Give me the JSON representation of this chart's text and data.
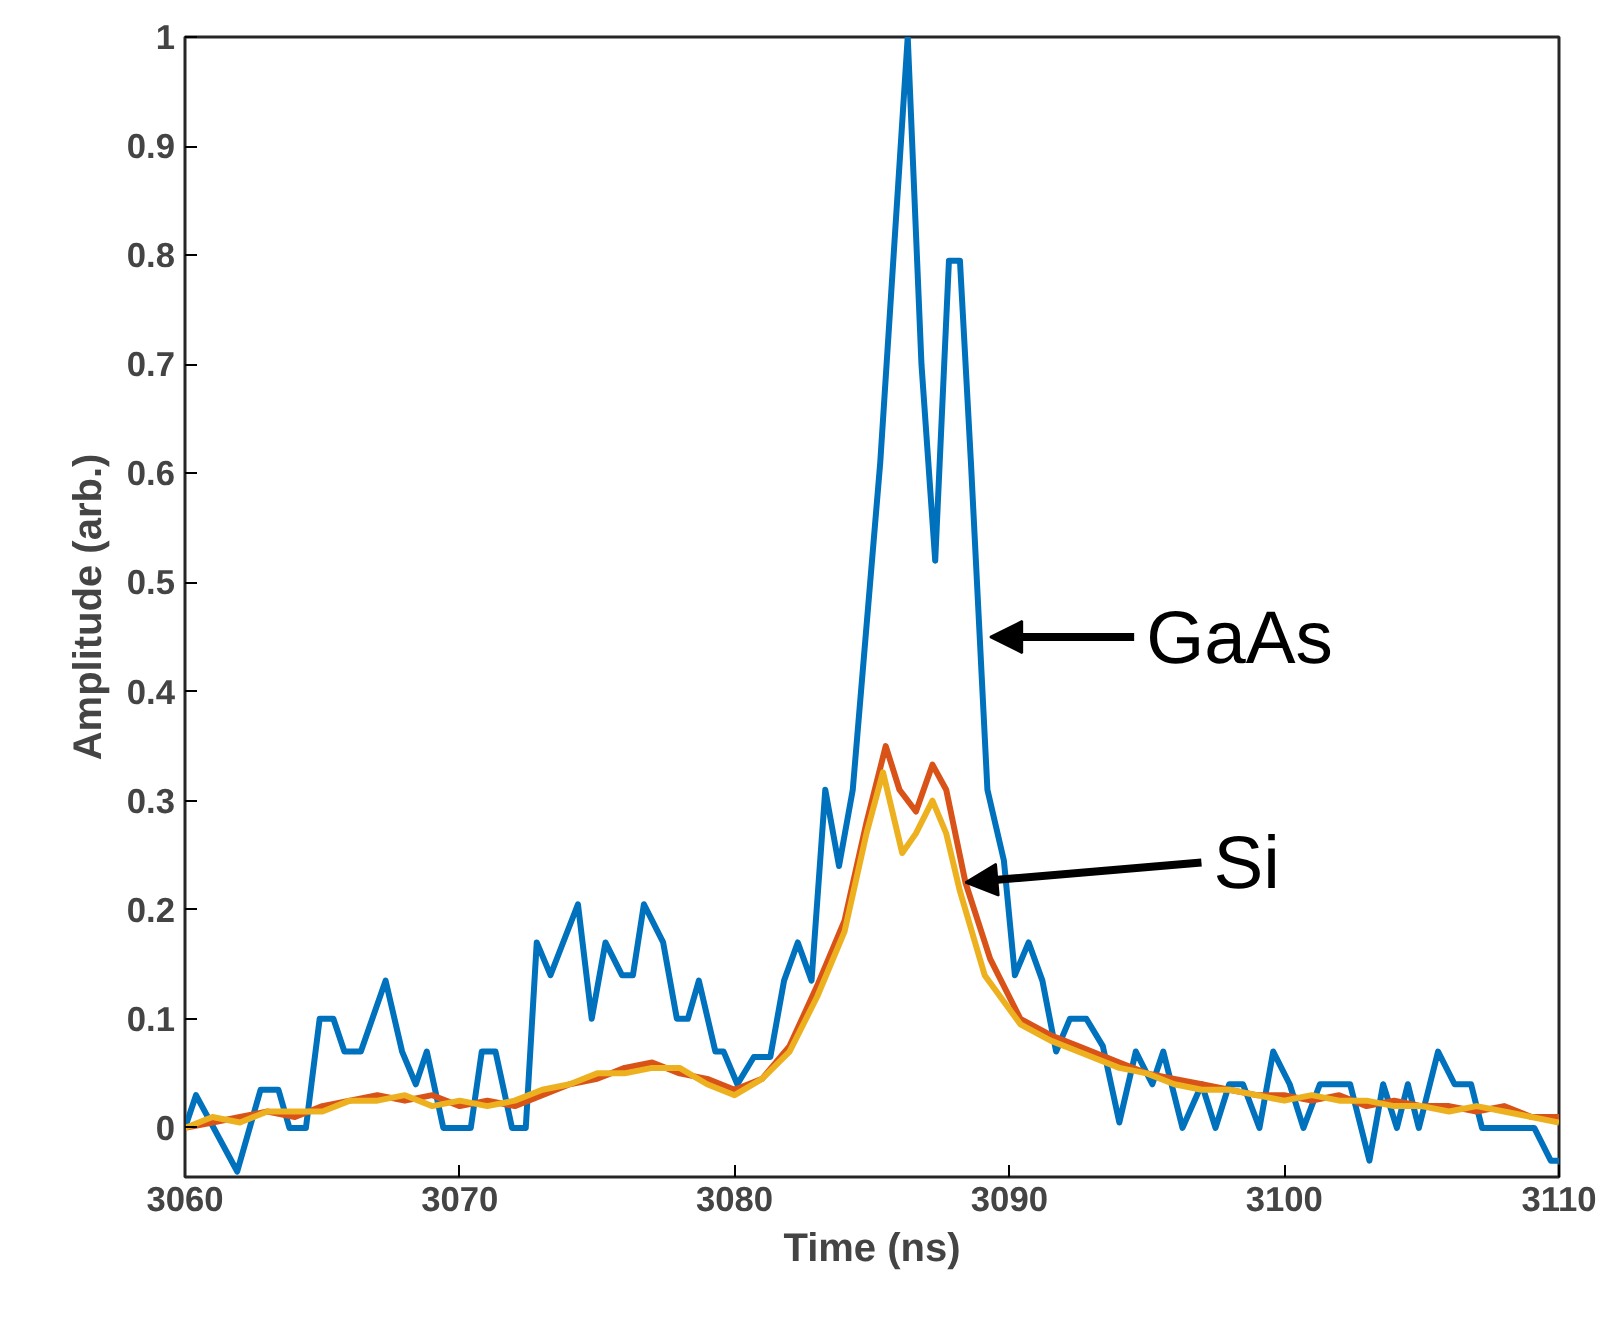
{
  "chart_data": {
    "type": "line",
    "xlabel": "Time (ns)",
    "ylabel": "Amplitude (arb.)",
    "xlim": [
      3060,
      3110
    ],
    "ylim": [
      -0.045,
      1
    ],
    "xticks": [
      3060,
      3070,
      3080,
      3090,
      3100,
      3110
    ],
    "yticks": [
      0,
      0.1,
      0.2,
      0.3,
      0.4,
      0.5,
      0.6,
      0.7,
      0.8,
      0.9,
      1
    ],
    "grid": false,
    "line_style": "solid",
    "annotations": [
      {
        "text": "GaAs",
        "x": 3089.3,
        "y": 0.45
      },
      {
        "text": "Si",
        "x": 3088.4,
        "y": 0.225
      }
    ],
    "series": [
      {
        "color": "#0072bd",
        "x": [
          3060,
          3060.4,
          3061.9,
          3062.75,
          3063.4,
          3063.8,
          3064.4,
          3064.9,
          3065.4,
          3065.8,
          3066.4,
          3067.3,
          3067.9,
          3068.4,
          3068.8,
          3069.4,
          3070.4,
          3070.8,
          3071.3,
          3071.9,
          3072.4,
          3072.8,
          3073.3,
          3074.3,
          3074.8,
          3075.3,
          3075.9,
          3076.3,
          3076.7,
          3077.4,
          3077.9,
          3078.3,
          3078.7,
          3079.3,
          3079.6,
          3080.1,
          3080.7,
          3081.3,
          3081.8,
          3082.3,
          3082.8,
          3083.3,
          3083.8,
          3084.3,
          3085.3,
          3086.3,
          3086.8,
          3087.3,
          3087.8,
          3088.2,
          3088.6,
          3089.2,
          3089.8,
          3090.2,
          3090.7,
          3091.2,
          3091.7,
          3092.2,
          3092.8,
          3093.4,
          3094,
          3094.6,
          3095.2,
          3095.6,
          3096.3,
          3097,
          3097.5,
          3098,
          3098.5,
          3099.1,
          3099.6,
          3100.2,
          3100.7,
          3101.3,
          3101.7,
          3102.4,
          3103.1,
          3103.6,
          3104.1,
          3104.5,
          3104.9,
          3105.6,
          3106.2,
          3106.8,
          3107.2,
          3109.1,
          3109.7,
          3110
        ],
        "values": [
          0,
          0.03,
          -0.04,
          0.035,
          0.035,
          0,
          0,
          0.1,
          0.1,
          0.07,
          0.07,
          0.135,
          0.07,
          0.04,
          0.07,
          0,
          0,
          0.07,
          0.07,
          0,
          0,
          0.17,
          0.14,
          0.205,
          0.1,
          0.17,
          0.14,
          0.14,
          0.205,
          0.17,
          0.1,
          0.1,
          0.135,
          0.07,
          0.07,
          0.04,
          0.065,
          0.065,
          0.135,
          0.17,
          0.135,
          0.31,
          0.24,
          0.31,
          0.61,
          1.0,
          0.7,
          0.52,
          0.795,
          0.795,
          0.61,
          0.31,
          0.245,
          0.14,
          0.17,
          0.135,
          0.07,
          0.1,
          0.1,
          0.075,
          0.005,
          0.07,
          0.04,
          0.07,
          0,
          0.04,
          0,
          0.04,
          0.04,
          0,
          0.07,
          0.04,
          0,
          0.04,
          0.04,
          0.04,
          -0.03,
          0.04,
          0,
          0.04,
          0,
          0.07,
          0.04,
          0.04,
          0,
          0,
          -0.03,
          -0.03
        ]
      },
      {
        "color": "#d95319",
        "x": [
          3060,
          3061,
          3062,
          3063,
          3064,
          3065,
          3066,
          3067,
          3068,
          3069,
          3070,
          3071,
          3072,
          3073,
          3074,
          3075,
          3076,
          3077,
          3078,
          3079,
          3080,
          3081,
          3082,
          3083,
          3084,
          3084.8,
          3085.5,
          3086,
          3086.6,
          3087.2,
          3087.7,
          3088.4,
          3089.3,
          3090.4,
          3091.5,
          3092.5,
          3094,
          3095,
          3096,
          3097,
          3098,
          3099,
          3100,
          3101,
          3102,
          3103,
          3104,
          3105,
          3106,
          3107,
          3108,
          3109,
          3110
        ],
        "values": [
          0,
          0.005,
          0.01,
          0.015,
          0.01,
          0.02,
          0.025,
          0.03,
          0.025,
          0.03,
          0.02,
          0.025,
          0.02,
          0.03,
          0.04,
          0.045,
          0.055,
          0.06,
          0.05,
          0.045,
          0.035,
          0.045,
          0.075,
          0.13,
          0.19,
          0.28,
          0.35,
          0.31,
          0.29,
          0.333,
          0.31,
          0.225,
          0.155,
          0.1,
          0.085,
          0.075,
          0.06,
          0.05,
          0.045,
          0.04,
          0.035,
          0.03,
          0.03,
          0.025,
          0.03,
          0.02,
          0.025,
          0.02,
          0.02,
          0.015,
          0.02,
          0.01,
          0.01
        ]
      },
      {
        "color": "#edb120",
        "x": [
          3060,
          3061,
          3062,
          3063,
          3064,
          3065,
          3066,
          3067,
          3068,
          3069,
          3070,
          3071,
          3072,
          3073,
          3074,
          3075,
          3076,
          3077,
          3078,
          3079,
          3080,
          3081,
          3082,
          3083,
          3084,
          3084.8,
          3085.4,
          3086.1,
          3086.6,
          3087.2,
          3087.7,
          3088.2,
          3089.1,
          3090.4,
          3091.5,
          3092.5,
          3094,
          3095,
          3096,
          3097,
          3098,
          3099,
          3100,
          3101,
          3102,
          3103,
          3104,
          3105,
          3106,
          3107,
          3108,
          3109,
          3110
        ],
        "values": [
          0,
          0.01,
          0.005,
          0.015,
          0.015,
          0.015,
          0.025,
          0.025,
          0.03,
          0.02,
          0.025,
          0.02,
          0.025,
          0.035,
          0.04,
          0.05,
          0.05,
          0.055,
          0.055,
          0.04,
          0.03,
          0.045,
          0.07,
          0.12,
          0.18,
          0.27,
          0.326,
          0.252,
          0.27,
          0.3,
          0.27,
          0.217,
          0.14,
          0.095,
          0.08,
          0.07,
          0.055,
          0.05,
          0.04,
          0.035,
          0.035,
          0.03,
          0.025,
          0.03,
          0.025,
          0.025,
          0.02,
          0.02,
          0.015,
          0.02,
          0.015,
          0.01,
          0.005
        ]
      }
    ]
  }
}
